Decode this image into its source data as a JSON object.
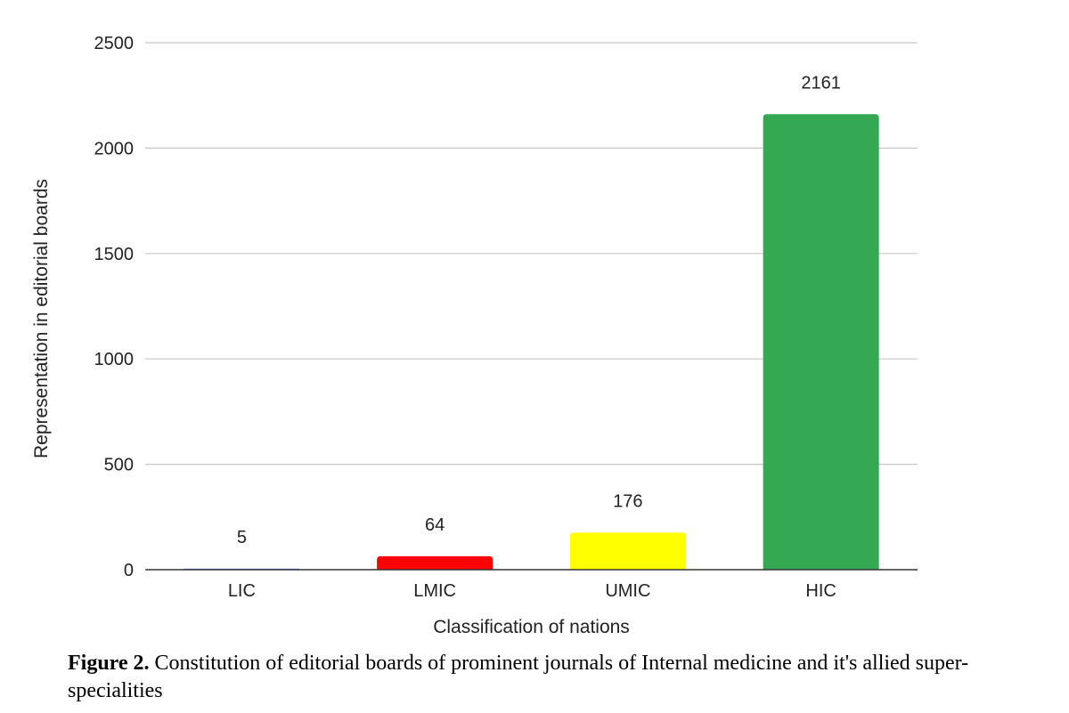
{
  "chart_data": {
    "type": "bar",
    "categories": [
      "LIC",
      "LMIC",
      "UMIC",
      "HIC"
    ],
    "values": [
      5,
      64,
      176,
      2161
    ],
    "data_labels": [
      "5",
      "64",
      "176",
      "2161"
    ],
    "colors": [
      "#4285f4",
      "#ff0000",
      "#ffff00",
      "#34a853"
    ],
    "xlabel": "Classification of nations",
    "ylabel": "Representation in editorial boards",
    "ylim": [
      0,
      2500
    ],
    "yticks": [
      0,
      500,
      1000,
      1500,
      2000,
      2500
    ],
    "ytick_labels": [
      "0",
      "500",
      "1000",
      "1500",
      "2000",
      "2500"
    ],
    "grid": true,
    "legend": "none"
  },
  "caption": {
    "label": "Figure 2.",
    "text": " Constitution of editorial boards of prominent journals of Internal medicine and it's allied super-specialities"
  },
  "colors": {
    "gridline": "#c8c8c8",
    "baseline": "#333333",
    "text": "#222222"
  }
}
